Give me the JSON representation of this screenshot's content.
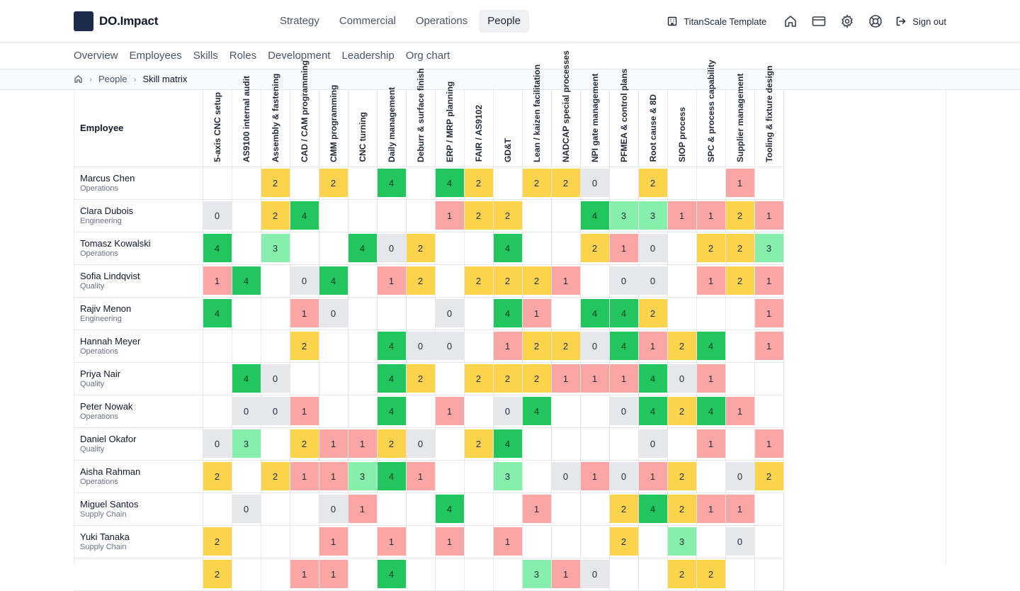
{
  "brand": {
    "name": "DO.Impact"
  },
  "main_nav": [
    {
      "label": "Strategy",
      "active": false
    },
    {
      "label": "Commercial",
      "active": false
    },
    {
      "label": "Operations",
      "active": false
    },
    {
      "label": "People",
      "active": true
    }
  ],
  "tenant": {
    "label": "TitanScale Template",
    "icon": "building-icon"
  },
  "tools": [
    {
      "name": "home-icon"
    },
    {
      "name": "credit-card-icon"
    },
    {
      "name": "gear-icon"
    },
    {
      "name": "lifebuoy-icon"
    }
  ],
  "signout": {
    "label": "Sign out",
    "icon": "sign-out-icon"
  },
  "sub_nav": [
    "Overview",
    "Employees",
    "Skills",
    "Roles",
    "Development",
    "Leadership",
    "Org chart"
  ],
  "breadcrumb": {
    "home_icon": "home-icon",
    "parent": "People",
    "current": "Skill matrix"
  },
  "matrix": {
    "employee_header": "Employee",
    "skills": [
      "5-axis CNC setup",
      "AS9100 internal audit",
      "Assembly & fastening",
      "CAD / CAM programming",
      "CMM programming",
      "CNC turning",
      "Daily management",
      "Deburr & surface finish",
      "ERP / MRP planning",
      "FAIR / AS9102",
      "GD&T",
      "Lean / kaizen facilitation",
      "NADCAP special processes",
      "NPI gate management",
      "PFMEA & control plans",
      "Root cause & 8D",
      "SIOP process",
      "SPC & process capability",
      "Supplier management",
      "Tooling & fixture design"
    ],
    "colors": {
      "0": "#e5e7eb",
      "1": "#fca5a5",
      "2": "#fcd34d",
      "3": "#86efac",
      "4": "#22c55e"
    },
    "rows": [
      {
        "name": "Marcus Chen",
        "dept": "Operations",
        "scores": [
          null,
          null,
          2,
          null,
          2,
          null,
          4,
          null,
          4,
          2,
          null,
          2,
          2,
          0,
          null,
          2,
          null,
          null,
          1,
          null
        ]
      },
      {
        "name": "Clara Dubois",
        "dept": "Engineering",
        "scores": [
          0,
          null,
          2,
          4,
          null,
          null,
          null,
          null,
          1,
          2,
          2,
          null,
          null,
          4,
          3,
          3,
          1,
          1,
          2,
          1
        ]
      },
      {
        "name": "Tomasz Kowalski",
        "dept": "Operations",
        "scores": [
          4,
          null,
          3,
          null,
          null,
          4,
          0,
          2,
          null,
          null,
          4,
          null,
          null,
          2,
          1,
          0,
          null,
          2,
          2,
          3
        ]
      },
      {
        "name": "Sofia Lindqvist",
        "dept": "Quality",
        "scores": [
          1,
          4,
          null,
          0,
          4,
          null,
          1,
          2,
          null,
          2,
          2,
          2,
          1,
          null,
          0,
          0,
          null,
          1,
          2,
          1
        ]
      },
      {
        "name": "Rajiv Menon",
        "dept": "Engineering",
        "scores": [
          4,
          null,
          null,
          1,
          0,
          null,
          null,
          null,
          0,
          null,
          4,
          1,
          null,
          4,
          4,
          2,
          null,
          null,
          null,
          1
        ]
      },
      {
        "name": "Hannah Meyer",
        "dept": "Operations",
        "scores": [
          null,
          null,
          null,
          2,
          null,
          null,
          4,
          0,
          0,
          null,
          1,
          2,
          2,
          0,
          4,
          1,
          2,
          4,
          null,
          1
        ]
      },
      {
        "name": "Priya Nair",
        "dept": "Quality",
        "scores": [
          null,
          4,
          0,
          null,
          null,
          null,
          4,
          2,
          null,
          2,
          2,
          2,
          1,
          1,
          1,
          4,
          0,
          1,
          null,
          null
        ]
      },
      {
        "name": "Peter Nowak",
        "dept": "Operations",
        "scores": [
          null,
          0,
          0,
          1,
          null,
          null,
          4,
          null,
          1,
          null,
          0,
          4,
          null,
          null,
          0,
          4,
          2,
          4,
          1,
          null
        ]
      },
      {
        "name": "Daniel Okafor",
        "dept": "Quality",
        "scores": [
          0,
          3,
          null,
          2,
          1,
          1,
          2,
          0,
          null,
          2,
          4,
          null,
          null,
          null,
          null,
          0,
          null,
          1,
          null,
          1
        ]
      },
      {
        "name": "Aisha Rahman",
        "dept": "Operations",
        "scores": [
          2,
          null,
          2,
          1,
          1,
          3,
          4,
          1,
          null,
          null,
          3,
          null,
          0,
          1,
          0,
          1,
          2,
          null,
          0,
          2
        ]
      },
      {
        "name": "Miguel Santos",
        "dept": "Supply Chain",
        "scores": [
          null,
          0,
          null,
          null,
          0,
          1,
          null,
          null,
          4,
          null,
          null,
          1,
          null,
          null,
          2,
          4,
          2,
          1,
          1,
          null
        ]
      },
      {
        "name": "Yuki Tanaka",
        "dept": "Supply Chain",
        "scores": [
          2,
          null,
          null,
          null,
          1,
          null,
          1,
          null,
          1,
          null,
          1,
          null,
          null,
          null,
          2,
          null,
          3,
          null,
          0,
          null
        ]
      },
      {
        "name": "",
        "dept": "",
        "scores": [
          2,
          null,
          null,
          1,
          1,
          null,
          4,
          null,
          null,
          null,
          null,
          3,
          1,
          0,
          null,
          null,
          2,
          2,
          null,
          null
        ]
      }
    ]
  }
}
